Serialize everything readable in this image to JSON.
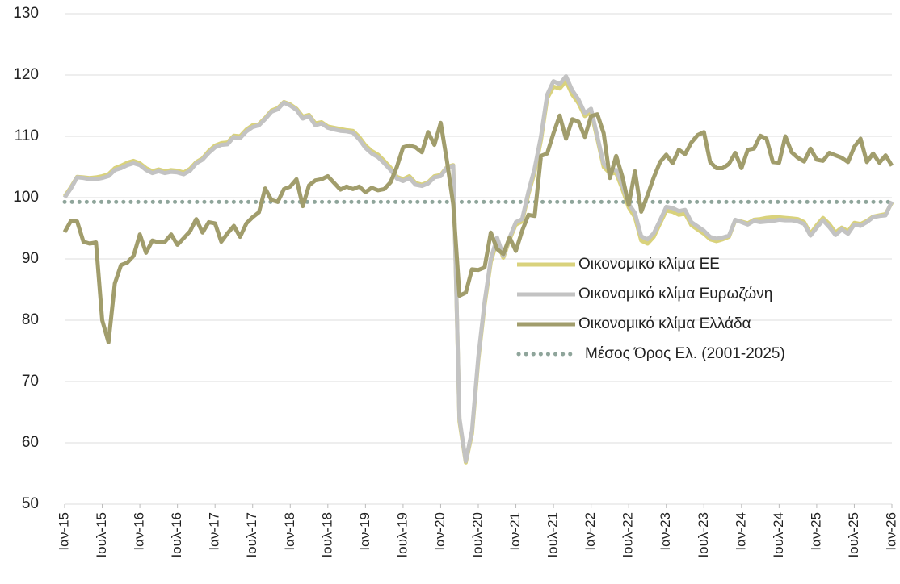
{
  "chart_data": {
    "type": "line",
    "categories": [
      "Ιαν-15",
      null,
      null,
      null,
      null,
      null,
      "Ιουλ-15",
      null,
      null,
      null,
      null,
      null,
      "Ιαν-16",
      null,
      null,
      null,
      null,
      null,
      "Ιουλ-16",
      null,
      null,
      null,
      null,
      null,
      "Ιαν-17",
      null,
      null,
      null,
      null,
      null,
      "Ιουλ-17",
      null,
      null,
      null,
      null,
      null,
      "Ιαν-18",
      null,
      null,
      null,
      null,
      null,
      "Ιουλ-18",
      null,
      null,
      null,
      null,
      null,
      "Ιαν-19",
      null,
      null,
      null,
      null,
      null,
      "Ιουλ-19",
      null,
      null,
      null,
      null,
      null,
      "Ιαν-20",
      null,
      null,
      null,
      null,
      null,
      "Ιουλ-20",
      null,
      null,
      null,
      null,
      null,
      "Ιαν-21",
      null,
      null,
      null,
      null,
      null,
      "Ιουλ-21",
      null,
      null,
      null,
      null,
      null,
      "Ιαν-22",
      null,
      null,
      null,
      null,
      null,
      "Ιουλ-22",
      null,
      null,
      null,
      null,
      null,
      "Ιαν-23",
      null,
      null,
      null,
      null,
      null,
      "Ιουλ-23",
      null,
      null,
      null,
      null,
      null,
      "Ιαν-24",
      null,
      null,
      null,
      null,
      null,
      "Ιουλ-24",
      null,
      null,
      null,
      null,
      null,
      "Ιαν-25",
      null,
      null,
      null,
      null,
      null,
      "Ιουλ-25",
      null,
      null,
      null,
      null,
      null,
      "Ιαν-26"
    ],
    "series": [
      {
        "name": "Οικονομικό κλίμα ΕΕ",
        "color": "#d9d27c",
        "values": [
          100.2,
          101.7,
          103.4,
          103.3,
          103.2,
          103.3,
          103.5,
          103.8,
          104.8,
          105.2,
          105.7,
          106.0,
          105.6,
          104.8,
          104.3,
          104.6,
          104.3,
          104.5,
          104.4,
          104.1,
          104.7,
          105.8,
          106.4,
          107.6,
          108.5,
          108.9,
          109.0,
          110.1,
          110.0,
          111.1,
          111.8,
          112.0,
          113.0,
          114.2,
          114.6,
          115.6,
          115.2,
          114.5,
          113.2,
          113.5,
          112.1,
          112.3,
          111.6,
          111.4,
          111.2,
          111.0,
          110.9,
          109.9,
          108.5,
          107.6,
          107.0,
          106.0,
          104.9,
          103.4,
          103.0,
          103.5,
          102.4,
          102.1,
          102.5,
          103.5,
          103.7,
          105.0,
          105.3,
          63.5,
          56.8,
          61.5,
          73.5,
          82.5,
          89.5,
          93,
          90.2,
          93.2,
          95.6,
          96.1,
          100.6,
          104.2,
          109.4,
          116.2,
          118.1,
          117.8,
          119,
          116.8,
          115.4,
          113.3,
          114,
          109.6,
          105,
          104,
          104,
          101.4,
          98.4,
          96.8,
          93,
          92.5,
          93.6,
          95.8,
          97.9,
          97.7,
          97.2,
          97.4,
          95.5,
          94.8,
          94.1,
          93.2,
          92.9,
          93.2,
          93.6,
          96.3,
          96.1,
          95.8,
          96.4,
          96.5,
          96.7,
          96.8,
          96.8,
          96.7,
          96.6,
          96.5,
          96.0,
          94.1,
          95.5,
          96.7,
          95.7,
          94.3,
          95.1,
          94.5,
          95.9,
          95.7,
          96.2,
          96.9,
          97.1,
          97.3,
          99.2
        ]
      },
      {
        "name": "Οικονομικό κλίμα Ευρωζώνη",
        "color": "#c3c3c3",
        "values": [
          100,
          101.5,
          103.3,
          103.2,
          103,
          103,
          103.2,
          103.5,
          104.5,
          104.8,
          105.3,
          105.6,
          105.3,
          104.5,
          104,
          104.3,
          104,
          104.2,
          104.1,
          103.8,
          104.4,
          105.6,
          106.2,
          107.3,
          108.2,
          108.6,
          108.7,
          109.9,
          109.7,
          110.8,
          111.5,
          111.8,
          112.8,
          114,
          114.4,
          115.5,
          115,
          114.3,
          112.9,
          113.3,
          111.8,
          112.1,
          111.4,
          111.1,
          110.9,
          110.8,
          110.6,
          109.5,
          108.1,
          107.2,
          106.6,
          105.6,
          104.5,
          103.1,
          102.7,
          103.2,
          102.1,
          101.9,
          102.3,
          103.3,
          103.5,
          104.9,
          105.2,
          64,
          57,
          62,
          74,
          83,
          90,
          93.5,
          90.5,
          93.5,
          96,
          96.5,
          101,
          104.8,
          110,
          116.8,
          119,
          118.5,
          119.8,
          117.5,
          116,
          113.8,
          114.5,
          110,
          105.5,
          104.5,
          104.5,
          102,
          99,
          97.5,
          93.7,
          93.2,
          94.2,
          96.3,
          98.5,
          98.3,
          97.8,
          98,
          96,
          95.3,
          94.6,
          93.6,
          93.3,
          93.5,
          93.8,
          96.4,
          96,
          95.6,
          96.2,
          96,
          96.1,
          96.2,
          96.4,
          96.3,
          96.3,
          96.1,
          95.7,
          93.8,
          95.1,
          96.3,
          95.2,
          93.9,
          94.8,
          94.1,
          95.6,
          95.4,
          96.0,
          96.8,
          97.0,
          97.1,
          99.4
        ]
      },
      {
        "name": "Οικονομικό κλίμα Ελλάδα",
        "color": "#a19d6c",
        "values": [
          94.4,
          96.2,
          96.1,
          92.8,
          92.5,
          92.7,
          80,
          76.4,
          86,
          89,
          89.4,
          90.5,
          94,
          91,
          93,
          92.7,
          92.8,
          94,
          92.3,
          93.4,
          94.5,
          96.5,
          94.3,
          96,
          95.8,
          92.8,
          94.2,
          95.4,
          93.6,
          95.8,
          96.8,
          97.6,
          101.5,
          99.6,
          99.3,
          101.4,
          101.8,
          103,
          98.6,
          102,
          102.8,
          103,
          103.5,
          102.4,
          101.3,
          101.8,
          101.4,
          101.8,
          100.9,
          101.6,
          101.2,
          101.4,
          102.5,
          105,
          108.2,
          108.5,
          108.2,
          107.4,
          110.7,
          108.6,
          112.2,
          106,
          98.9,
          84,
          84.5,
          88.3,
          88.2,
          88.6,
          94.3,
          91.6,
          90.8,
          93.5,
          91.3,
          94.6,
          97.2,
          97,
          106.8,
          107.2,
          110.5,
          113.4,
          109.6,
          112.8,
          112.4,
          109.9,
          113.3,
          113.6,
          110.5,
          103.2,
          106.8,
          103.4,
          98.8,
          104.3,
          97.7,
          100.4,
          103.3,
          105.8,
          107,
          105.6,
          107.8,
          107.1,
          109,
          110.2,
          110.7,
          105.8,
          104.8,
          104.8,
          105.5,
          107.3,
          104.8,
          107.8,
          108,
          110.1,
          109.6,
          105.8,
          105.7,
          110,
          107.4,
          106.5,
          105.9,
          108,
          106.2,
          106,
          107.3,
          106.9,
          106.5,
          105.8,
          108.3,
          109.6,
          105.8,
          107.2,
          105.7,
          106.9,
          105.2
        ]
      }
    ],
    "reference_line": {
      "name": "Μέσος Όρος Ελ. (2001-2025)",
      "value": 99.3,
      "color": "#8fa59b",
      "style": "dotted"
    },
    "ylim": [
      50,
      130
    ],
    "yticks": [
      50,
      60,
      70,
      80,
      90,
      100,
      110,
      120,
      130
    ],
    "grid": true,
    "legend": "right"
  }
}
